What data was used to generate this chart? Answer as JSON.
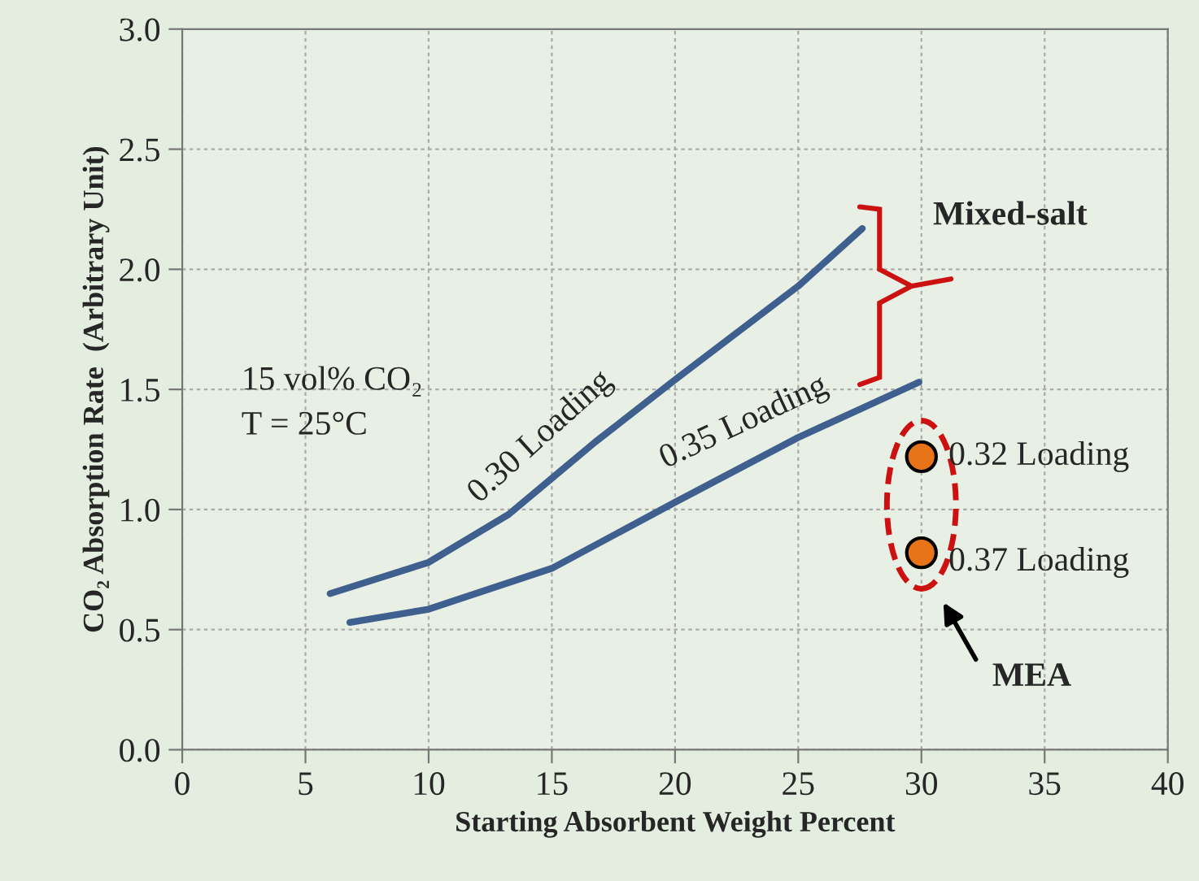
{
  "chart_data": {
    "type": "line",
    "xlabel": "Starting Absorbent Weight Percent",
    "ylabel": "CO₂ Absorption Rate  (Arbitrary Unit)",
    "xlim": [
      0,
      40
    ],
    "ylim": [
      0,
      3
    ],
    "xticks": [
      0,
      5,
      10,
      15,
      20,
      25,
      30,
      35,
      40
    ],
    "yticks": [
      {
        "value": 0,
        "label": "0.0"
      },
      {
        "value": 0.5,
        "label": "0.5"
      },
      {
        "value": 1,
        "label": "1.0"
      },
      {
        "value": 1.5,
        "label": "1.5"
      },
      {
        "value": 2,
        "label": "2.0"
      },
      {
        "value": 2.5,
        "label": "2.5"
      },
      {
        "value": 3,
        "label": "3.0"
      }
    ],
    "grid": true,
    "line_style": "solid",
    "series": [
      {
        "color": "#3f5f8f",
        "marker": "none",
        "x": [
          6.0,
          10,
          13.25,
          15,
          16.75,
          20,
          25,
          27.6
        ],
        "values": [
          0.65,
          0.78,
          0.98,
          1.13,
          1.28,
          1.54,
          1.93,
          2.17
        ]
      },
      {
        "color": "#3f5f8f",
        "marker": "none",
        "x": [
          6.8,
          10,
          15,
          20,
          25,
          29.9
        ],
        "values": [
          0.53,
          0.585,
          0.755,
          1.03,
          1.3,
          1.53
        ]
      },
      {
        "type": "scatter",
        "color": "#e8741a",
        "marker": "circle",
        "x": [
          30,
          30
        ],
        "values": [
          1.22,
          0.82
        ]
      }
    ],
    "annotations": [
      "15 vol% CO₂\nT = 25°C",
      {
        "text": "0.30 Loading",
        "x": 16.75,
        "y": 1.28
      },
      {
        "text": "0.35 Loading",
        "x": 25,
        "y": 1.3
      },
      "Mixed-salt",
      {
        "text": "0.32 Loading",
        "x": 30,
        "y": 1.22
      },
      {
        "text": "0.37 Loading",
        "x": 30,
        "y": 0.82
      },
      "MEA"
    ]
  }
}
